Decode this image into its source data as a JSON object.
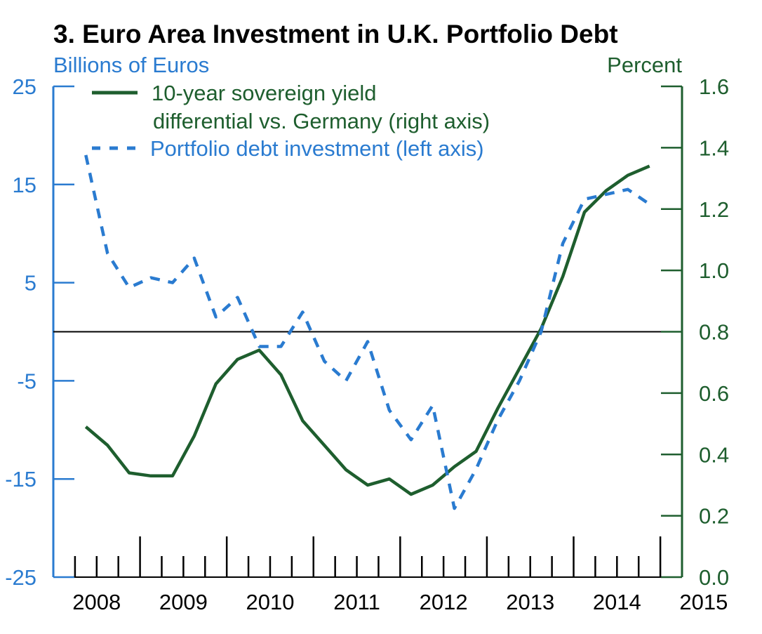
{
  "colors": {
    "yield": "#1e5e2e",
    "portfolio": "#2a7bd0",
    "axis_left": "#2a7bd0",
    "axis_right": "#1e5e2e",
    "zero_line": "#000000"
  },
  "chart_data": {
    "type": "line",
    "title": "3. Euro Area Investment in U.K. Portfolio Debt",
    "left_axis": {
      "label": "Billions of Euros",
      "ylim": [
        -25,
        25
      ],
      "ticks": [
        "25",
        "15",
        "5",
        "-5",
        "-15",
        "-25"
      ],
      "tick_values": [
        25,
        15,
        5,
        -5,
        -15,
        -25
      ]
    },
    "right_axis": {
      "label": "Percent",
      "ylim": [
        0.0,
        1.6
      ],
      "ticks": [
        "1.6",
        "1.4",
        "1.2",
        "1.0",
        "0.8",
        "0.6",
        "0.4",
        "0.2",
        "0.0"
      ],
      "tick_values": [
        1.6,
        1.4,
        1.2,
        1.0,
        0.8,
        0.6,
        0.4,
        0.2,
        0.0
      ]
    },
    "x_axis": {
      "ticks": [
        "2008",
        "2009",
        "2010",
        "2011",
        "2012",
        "2013",
        "2014",
        "2015"
      ],
      "xlim": [
        2008,
        2015.25
      ]
    },
    "zero_line": 0,
    "grid": false,
    "legend_position": "top-left",
    "series": [
      {
        "name": "10-year sovereign yield differential vs. Germany (right axis)",
        "axis": "right",
        "style": "solid",
        "x": [
          2008.375,
          2008.625,
          2008.875,
          2009.125,
          2009.375,
          2009.625,
          2009.875,
          2010.125,
          2010.375,
          2010.625,
          2010.875,
          2011.125,
          2011.375,
          2011.625,
          2011.875,
          2012.125,
          2012.375,
          2012.625,
          2012.875,
          2013.125,
          2013.375,
          2013.625,
          2013.875,
          2014.125,
          2014.375,
          2014.625,
          2014.875
        ],
        "values": [
          0.49,
          0.43,
          0.34,
          0.33,
          0.33,
          0.46,
          0.63,
          0.71,
          0.74,
          0.66,
          0.51,
          0.43,
          0.35,
          0.3,
          0.32,
          0.27,
          0.3,
          0.36,
          0.41,
          0.55,
          0.68,
          0.81,
          0.98,
          1.19,
          1.26,
          1.31,
          1.34
        ]
      },
      {
        "name": "Portfolio debt investment (left axis)",
        "axis": "left",
        "style": "dashed",
        "x": [
          2008.375,
          2008.625,
          2008.875,
          2009.125,
          2009.375,
          2009.625,
          2009.875,
          2010.125,
          2010.375,
          2010.625,
          2010.875,
          2011.125,
          2011.375,
          2011.625,
          2011.875,
          2012.125,
          2012.375,
          2012.625,
          2012.875,
          2013.125,
          2013.375,
          2013.625,
          2013.875,
          2014.125,
          2014.375,
          2014.625,
          2014.875
        ],
        "values": [
          18,
          8,
          4.5,
          5.5,
          5,
          7.5,
          1.5,
          3.5,
          -1.5,
          -1.5,
          2,
          -3,
          -5,
          -1,
          -8,
          -11,
          -7.5,
          -18,
          -14,
          -9,
          -5,
          0,
          9,
          13.5,
          14,
          14.5,
          13
        ]
      }
    ]
  }
}
